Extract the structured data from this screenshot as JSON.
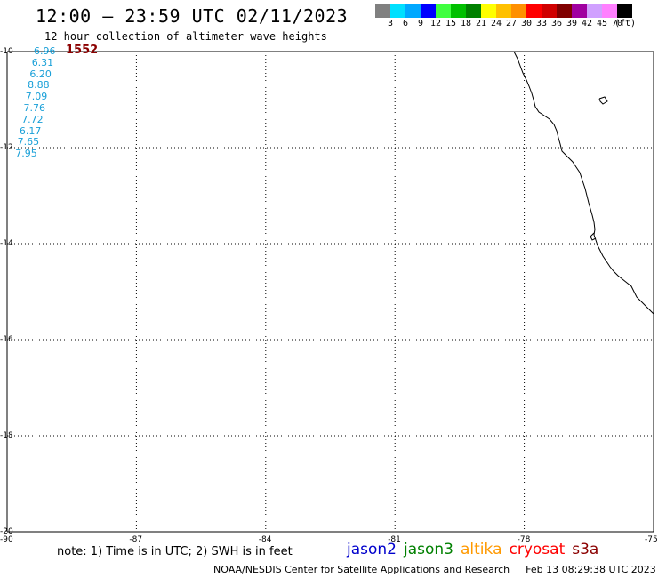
{
  "header": {
    "title": "12:00 – 23:59 UTC 02/11/2023",
    "subtitle": "12 hour collection of altimeter wave heights"
  },
  "scale": {
    "colors": [
      "#808080",
      "#00e0ff",
      "#00a8ff",
      "#0000ff",
      "#40ff40",
      "#00c000",
      "#008000",
      "#ffff00",
      "#ffc000",
      "#ff9000",
      "#ff0000",
      "#d00000",
      "#800000",
      "#a000a0",
      "#d0a0ff",
      "#ff80ff",
      "#000000"
    ],
    "labels": [
      "3",
      "6",
      "9",
      "12",
      "15",
      "18",
      "21",
      "24",
      "27",
      "30",
      "33",
      "36",
      "39",
      "42",
      "45",
      "70",
      "(ft)"
    ]
  },
  "axes": {
    "lon_labels": [
      "-90",
      "-87",
      "-84",
      "-81",
      "-78",
      "-75"
    ],
    "lat_labels": [
      "-10",
      "-12",
      "-14",
      "-16",
      "-18",
      "-20"
    ]
  },
  "observations": {
    "values": [
      "6.96",
      "6.31",
      "6.20",
      "8.88",
      "7.09",
      "7.76",
      "7.72",
      "6.17",
      "7.65",
      "7.95"
    ],
    "color": "#1aa0d8",
    "pass_label": "1552",
    "pass_color": "#8b0000"
  },
  "note": "note: 1) Time is in UTC; 2) SWH is in feet",
  "satellites": [
    {
      "name": "jason2",
      "color": "#0000cc"
    },
    {
      "name": "jason3",
      "color": "#008000"
    },
    {
      "name": "altika",
      "color": "#ff9900"
    },
    {
      "name": "cryosat",
      "color": "#ff0000"
    },
    {
      "name": "s3a",
      "color": "#8b0000"
    }
  ],
  "footer": {
    "credit": "NOAA/NESDIS Center for Satellite Applications and Research",
    "timestamp": "Feb 13 08:29:38 UTC 2023"
  }
}
